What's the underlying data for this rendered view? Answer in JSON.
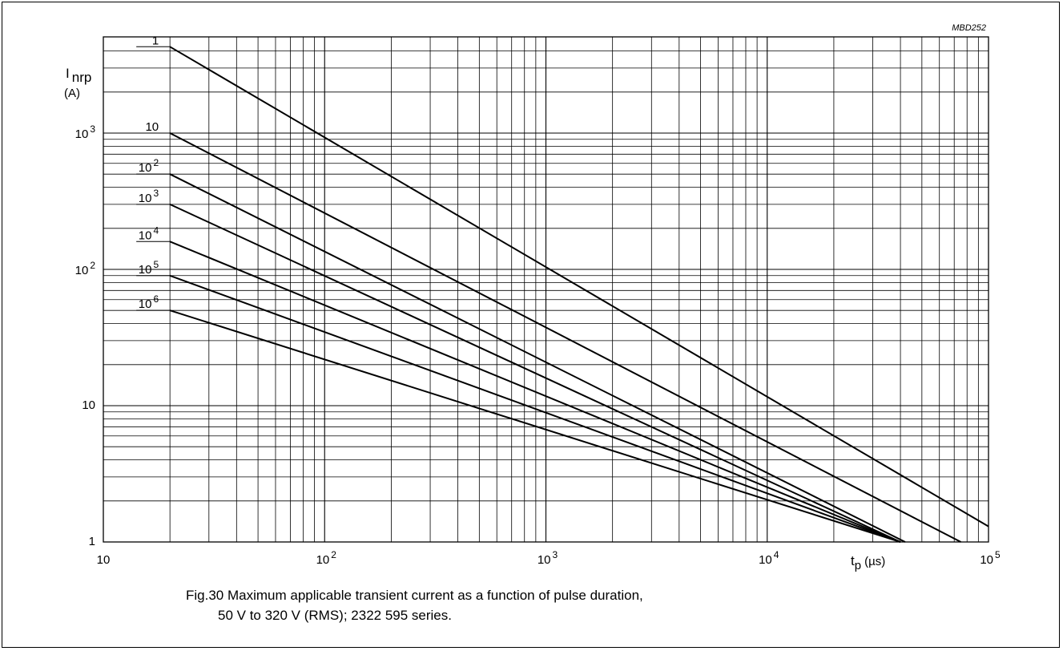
{
  "chart_data": {
    "type": "line",
    "code": "MBD252",
    "title": "",
    "xlabel": {
      "base": "t",
      "sub": "p",
      "unit": "(µs)"
    },
    "ylabel": {
      "base": "I",
      "sub": "nrp",
      "unit": "(A)"
    },
    "x_scale": "log",
    "y_scale": "log",
    "xlim": [
      10,
      100000
    ],
    "ylim": [
      1,
      5000
    ],
    "grid": true,
    "x_ticks": [
      {
        "base": "10",
        "exp": ""
      },
      {
        "base": "10",
        "exp": "2"
      },
      {
        "base": "10",
        "exp": "3"
      },
      {
        "base": "10",
        "exp": "4"
      },
      {
        "base": "10",
        "exp": "5"
      }
    ],
    "y_ticks": [
      {
        "base": "1",
        "exp": ""
      },
      {
        "base": "10",
        "exp": ""
      },
      {
        "base": "10",
        "exp": "2"
      },
      {
        "base": "10",
        "exp": "3"
      }
    ],
    "series": [
      {
        "name": "1",
        "name_exp": "",
        "x": [
          20,
          100000
        ],
        "y": [
          4300,
          1.3
        ]
      },
      {
        "name": "10",
        "name_exp": "",
        "x": [
          20,
          75000
        ],
        "y": [
          1000,
          1.0
        ]
      },
      {
        "name": "10",
        "name_exp": "2",
        "x": [
          20,
          42000
        ],
        "y": [
          500,
          1.0
        ]
      },
      {
        "name": "10",
        "name_exp": "3",
        "x": [
          20,
          40000
        ],
        "y": [
          300,
          1.0
        ]
      },
      {
        "name": "10",
        "name_exp": "4",
        "x": [
          20,
          40000
        ],
        "y": [
          160,
          1.0
        ]
      },
      {
        "name": "10",
        "name_exp": "5",
        "x": [
          20,
          40000
        ],
        "y": [
          90,
          1.0
        ]
      },
      {
        "name": "10",
        "name_exp": "6",
        "x": [
          20,
          40000
        ],
        "y": [
          50,
          1.0
        ]
      }
    ]
  },
  "caption": {
    "line1": "Fig.30  Maximum applicable transient current as a function of pulse duration,",
    "line2": "50 V to 320 V (RMS); 2322 595 series."
  }
}
